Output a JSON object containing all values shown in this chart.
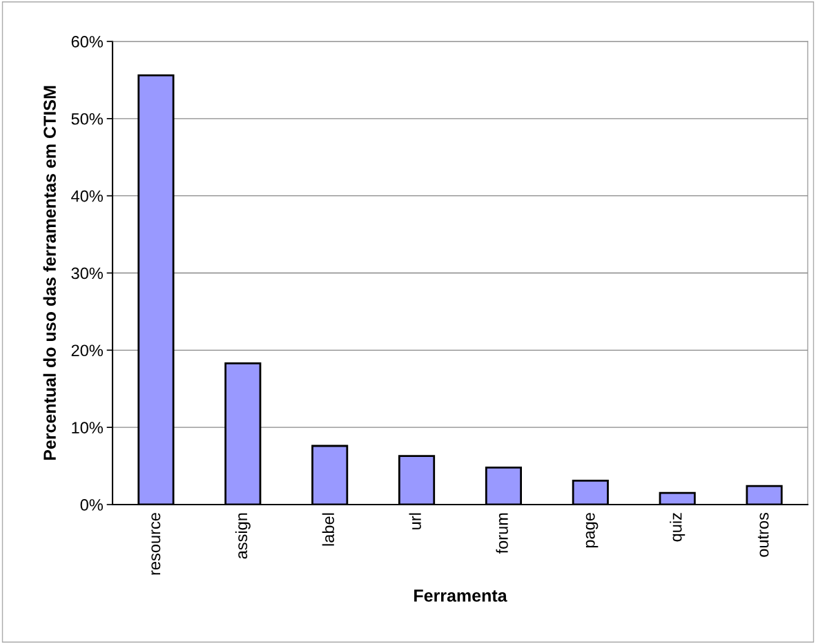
{
  "chart_data": {
    "type": "bar",
    "xlabel": "Ferramenta",
    "ylabel": "Percentual do uso das ferramentas em CTISM",
    "categories": [
      "resource",
      "assign",
      "label",
      "url",
      "forum",
      "page",
      "quiz",
      "outros"
    ],
    "values": [
      55.6,
      18.3,
      7.6,
      6.3,
      4.8,
      3.1,
      1.5,
      2.4
    ],
    "color": "#9999ff",
    "ylim": [
      0,
      60
    ],
    "yticks": [
      {
        "value": 0,
        "label": "0%"
      },
      {
        "value": 10,
        "label": "10%"
      },
      {
        "value": 20,
        "label": "20%"
      },
      {
        "value": 30,
        "label": "30%"
      },
      {
        "value": 40,
        "label": "40%"
      },
      {
        "value": 50,
        "label": "50%"
      },
      {
        "value": 60,
        "label": "60%"
      }
    ],
    "grid": "y",
    "legend": false
  }
}
